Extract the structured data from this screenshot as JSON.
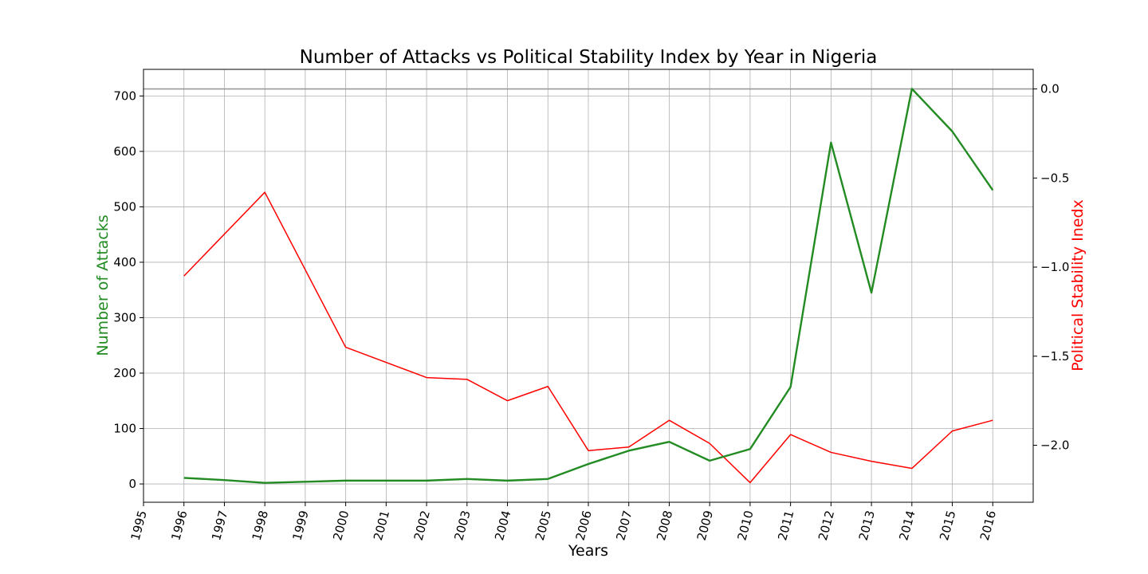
{
  "chart_data": {
    "type": "line",
    "title": "Number of Attacks vs Political Stability Index by Year in Nigeria",
    "xlabel": "Years",
    "ylabel_left": "Number of Attacks",
    "ylabel_right": "Political Stability Inedx",
    "xlim": [
      1995,
      2017
    ],
    "ylim_left": [
      -33,
      748
    ],
    "ylim_right": [
      -2.32,
      0.11
    ],
    "x_ticks": [
      "1995",
      "1996",
      "1997",
      "1998",
      "1999",
      "2000",
      "2001",
      "2002",
      "2003",
      "2004",
      "2005",
      "2006",
      "2007",
      "2008",
      "2009",
      "2010",
      "2011",
      "2012",
      "2013",
      "2014",
      "2015",
      "2016"
    ],
    "y_ticks_left": [
      "0",
      "100",
      "200",
      "300",
      "400",
      "500",
      "600",
      "700"
    ],
    "y_ticks_right": [
      "0.0",
      "−0.5",
      "−1.0",
      "−1.5",
      "−2.0"
    ],
    "grid": true,
    "reference_line_right": 0.0,
    "series": [
      {
        "name": "",
        "axis": "left",
        "color": "#228b22",
        "x": [
          1996,
          1997,
          1998,
          1999,
          2000,
          2001,
          2002,
          2003,
          2004,
          2005,
          2006,
          2007,
          2008,
          2009,
          2010,
          2011,
          2012,
          2013,
          2014,
          2015,
          2016
        ],
        "values": [
          11,
          7,
          2,
          4,
          6,
          6,
          6,
          9,
          6,
          9,
          36,
          60,
          76,
          42,
          63,
          175,
          616,
          345,
          713,
          636,
          530
        ]
      },
      {
        "name": "",
        "axis": "right",
        "color": "#ff0000",
        "x": [
          1996,
          1998,
          2000,
          2002,
          2003,
          2004,
          2005,
          2006,
          2007,
          2008,
          2009,
          2010,
          2011,
          2012,
          2013,
          2014,
          2015,
          2016
        ],
        "values": [
          -1.05,
          -0.58,
          -1.45,
          -1.62,
          -1.63,
          -1.75,
          -1.67,
          -2.03,
          -2.01,
          -1.86,
          -1.99,
          -2.21,
          -1.94,
          -2.04,
          -2.09,
          -2.13,
          -1.92,
          -1.86
        ]
      }
    ]
  }
}
